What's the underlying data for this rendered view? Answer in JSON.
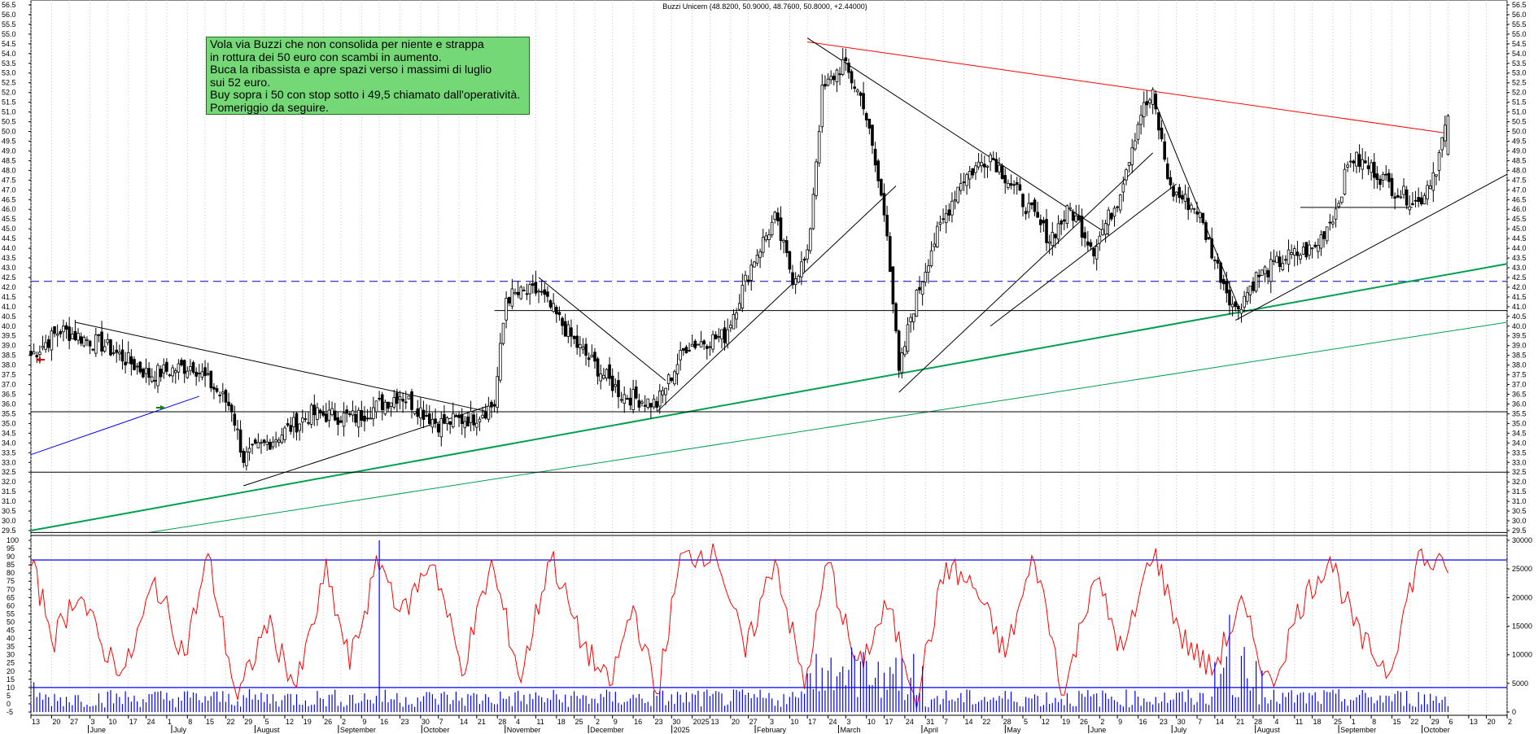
{
  "header": {
    "title": "Buzzi Unicem (48.8200, 50.9000, 48.7600, 50.8000, +2.44000)"
  },
  "note": {
    "lines": [
      "Vola via Buzzi che non consolida per niente e strappa",
      "in rottura dei 50 euro con scambi in aumento.",
      "Buca la ribassista e apre spazi verso i massimi di luglio",
      "sui 52 euro.",
      "Buy sopra i 50 con stop sotto i 49,5 chiamato dall'operatività.",
      "Pomeriggio da seguire."
    ]
  },
  "colors": {
    "candle": "#000000",
    "resistance": "#ff0000",
    "support_blue": "#0000ff",
    "trend_green": "#00a050",
    "oscillator": "#ff0000",
    "volume": "#0000ff",
    "dashed_level": "#0000c0",
    "note_bg": "#75d876"
  },
  "chart_data": [
    {
      "type": "candlestick",
      "title": "Buzzi Unicem (48.8200, 50.9000, 48.7600, 50.8000, +2.44000)",
      "last": {
        "open": 48.82,
        "high": 50.9,
        "low": 48.76,
        "close": 50.8,
        "change": 2.44
      },
      "ylim": [
        29.5,
        56.5
      ],
      "y_ticks": [
        "56.5",
        "56.0",
        "55.5",
        "55.0",
        "54.5",
        "54.0",
        "53.5",
        "53.0",
        "52.5",
        "52.0",
        "51.5",
        "51.0",
        "50.5",
        "50.0",
        "49.5",
        "49.0",
        "48.5",
        "48.0",
        "47.5",
        "47.0",
        "46.5",
        "46.0",
        "45.5",
        "45.0",
        "44.5",
        "44.0",
        "43.5",
        "43.0",
        "42.5",
        "42.0",
        "41.5",
        "41.0",
        "40.5",
        "40.0",
        "39.5",
        "39.0",
        "38.5",
        "38.0",
        "37.5",
        "37.0",
        "36.5",
        "36.0",
        "35.5",
        "35.0",
        "34.5",
        "34.0",
        "33.5",
        "33.0",
        "32.5",
        "32.0",
        "31.5",
        "31.0",
        "30.5",
        "30.0",
        "29.5"
      ],
      "grid": "vertical-dotted",
      "day_ticks": [
        "13",
        "20",
        "27",
        "3",
        "10",
        "17",
        "24",
        "1",
        "8",
        "15",
        "22",
        "29",
        "5",
        "12",
        "19",
        "26",
        "2",
        "9",
        "16",
        "23",
        "30",
        "7",
        "14",
        "21",
        "28",
        "4",
        "11",
        "18",
        "25",
        "2",
        "9",
        "16",
        "23",
        "30",
        "2025",
        "13",
        "20",
        "27",
        "3",
        "10",
        "17",
        "24",
        "3",
        "10",
        "17",
        "24",
        "31",
        "7",
        "14",
        "22",
        "28",
        "5",
        "12",
        "19",
        "26",
        "2",
        "9",
        "16",
        "23",
        "30",
        "7",
        "14",
        "21",
        "28",
        "4",
        "11",
        "18",
        "25",
        "1",
        "8",
        "15",
        "22",
        "29",
        "6",
        "13",
        "20",
        "2"
      ],
      "month_labels": [
        "June",
        "July",
        "August",
        "September",
        "October",
        "November",
        "December",
        "2025",
        "February",
        "March",
        "April",
        "May",
        "June",
        "July",
        "August",
        "September",
        "October"
      ],
      "keypoints": [
        {
          "d": 0,
          "c": 38.5
        },
        {
          "d": 10,
          "c": 39.8
        },
        {
          "d": 25,
          "c": 39.0
        },
        {
          "d": 40,
          "c": 37.5
        },
        {
          "d": 55,
          "c": 38.0
        },
        {
          "d": 68,
          "c": 35.8
        },
        {
          "d": 72,
          "c": 33.2
        },
        {
          "d": 80,
          "c": 34.0
        },
        {
          "d": 95,
          "c": 35.5
        },
        {
          "d": 110,
          "c": 35.3
        },
        {
          "d": 125,
          "c": 36.5
        },
        {
          "d": 138,
          "c": 35.0
        },
        {
          "d": 150,
          "c": 35.3
        },
        {
          "d": 157,
          "c": 36.0
        },
        {
          "d": 161,
          "c": 41.5
        },
        {
          "d": 172,
          "c": 41.8
        },
        {
          "d": 185,
          "c": 39.0
        },
        {
          "d": 200,
          "c": 36.5
        },
        {
          "d": 212,
          "c": 36.0
        },
        {
          "d": 222,
          "c": 39.0
        },
        {
          "d": 235,
          "c": 39.5
        },
        {
          "d": 245,
          "c": 43.5
        },
        {
          "d": 252,
          "c": 45.5
        },
        {
          "d": 258,
          "c": 42.5
        },
        {
          "d": 263,
          "c": 43.5
        },
        {
          "d": 268,
          "c": 52.0
        },
        {
          "d": 275,
          "c": 53.5
        },
        {
          "d": 282,
          "c": 51.5
        },
        {
          "d": 290,
          "c": 45.0
        },
        {
          "d": 294,
          "c": 37.5
        },
        {
          "d": 298,
          "c": 40.5
        },
        {
          "d": 305,
          "c": 44.0
        },
        {
          "d": 315,
          "c": 47.5
        },
        {
          "d": 325,
          "c": 48.8
        },
        {
          "d": 338,
          "c": 46.0
        },
        {
          "d": 345,
          "c": 44.5
        },
        {
          "d": 352,
          "c": 46.0
        },
        {
          "d": 360,
          "c": 44.0
        },
        {
          "d": 368,
          "c": 46.5
        },
        {
          "d": 376,
          "c": 51.0
        },
        {
          "d": 380,
          "c": 51.8
        },
        {
          "d": 386,
          "c": 47.0
        },
        {
          "d": 395,
          "c": 46.0
        },
        {
          "d": 402,
          "c": 43.0
        },
        {
          "d": 408,
          "c": 40.8
        },
        {
          "d": 415,
          "c": 42.5
        },
        {
          "d": 425,
          "c": 43.5
        },
        {
          "d": 435,
          "c": 44.0
        },
        {
          "d": 442,
          "c": 46.0
        },
        {
          "d": 447,
          "c": 48.7
        },
        {
          "d": 455,
          "c": 48.0
        },
        {
          "d": 462,
          "c": 47.0
        },
        {
          "d": 470,
          "c": 46.3
        },
        {
          "d": 476,
          "c": 48.2
        },
        {
          "d": 480,
          "c": 50.8
        }
      ],
      "lines": [
        {
          "name": "red-resistance",
          "color": "#ff0000",
          "points": [
            [
              263,
              54.6
            ],
            [
              480,
              49.9
            ]
          ]
        },
        {
          "name": "blue-support-1",
          "color": "#0000ff",
          "points": [
            [
              0,
              33.4
            ],
            [
              57,
              36.4
            ]
          ]
        },
        {
          "name": "blue-dashed-level",
          "color": "#0000c0",
          "dash": true,
          "points": [
            [
              0,
              42.3
            ],
            [
              500,
              42.3
            ]
          ]
        },
        {
          "name": "green-trend-thick",
          "color": "#00a050",
          "points": [
            [
              0,
              29.5
            ],
            [
              500,
              43.2
            ]
          ]
        },
        {
          "name": "green-trend-thin",
          "color": "#00a050",
          "points": [
            [
              40,
              29.4
            ],
            [
              500,
              40.2
            ]
          ]
        },
        {
          "name": "level-35-5",
          "color": "#000000",
          "points": [
            [
              0,
              35.6
            ],
            [
              500,
              35.6
            ]
          ]
        },
        {
          "name": "level-32-5",
          "color": "#000000",
          "points": [
            [
              0,
              32.5
            ],
            [
              500,
              32.5
            ]
          ]
        },
        {
          "name": "level-29-4",
          "color": "#000000",
          "points": [
            [
              0,
              29.4
            ],
            [
              500,
              29.4
            ]
          ]
        },
        {
          "name": "level-40-8",
          "color": "#000000",
          "points": [
            [
              157,
              40.8
            ],
            [
              500,
              40.8
            ]
          ]
        },
        {
          "name": "descending-1",
          "color": "#000000",
          "points": [
            [
              15,
              40.2
            ],
            [
              155,
              35.6
            ]
          ]
        },
        {
          "name": "ascending-1",
          "color": "#000000",
          "points": [
            [
              72,
              31.8
            ],
            [
              155,
              35.9
            ]
          ]
        },
        {
          "name": "descending-2",
          "color": "#000000",
          "points": [
            [
              172,
              42.5
            ],
            [
              215,
              37.2
            ]
          ]
        },
        {
          "name": "ascending-2",
          "color": "#000000",
          "points": [
            [
              212,
              35.6
            ],
            [
              293,
              47.2
            ]
          ]
        },
        {
          "name": "descending-3",
          "color": "#000000",
          "points": [
            [
              263,
              54.8
            ],
            [
              365,
              44.7
            ]
          ]
        },
        {
          "name": "ascending-3",
          "color": "#000000",
          "points": [
            [
              294,
              36.6
            ],
            [
              380,
              48.9
            ]
          ]
        },
        {
          "name": "descending-4",
          "color": "#000000",
          "points": [
            [
              380,
              51.8
            ],
            [
              409,
              41.0
            ]
          ]
        },
        {
          "name": "ascending-4",
          "color": "#000000",
          "points": [
            [
              408,
              40.3
            ],
            [
              500,
              47.8
            ]
          ]
        },
        {
          "name": "ascending-5",
          "color": "#000000",
          "points": [
            [
              325,
              40.0
            ],
            [
              388,
              47.3
            ]
          ]
        },
        {
          "name": "level-46",
          "color": "#000000",
          "points": [
            [
              430,
              46.1
            ],
            [
              468,
              46.1
            ]
          ]
        }
      ]
    },
    {
      "type": "line",
      "title": "",
      "ylim": [
        -5,
        100
      ],
      "y_ticks": [
        "100",
        "95",
        "90",
        "85",
        "80",
        "75",
        "70",
        "65",
        "60",
        "55",
        "50",
        "45",
        "40",
        "35",
        "30",
        "25",
        "20",
        "15",
        "10",
        "5",
        "0",
        "-5"
      ],
      "levels": [
        88,
        10
      ],
      "series": [
        {
          "keypoints": [
            [
              0,
              85
            ],
            [
              8,
              40
            ],
            [
              16,
              70
            ],
            [
              24,
              35
            ],
            [
              32,
              20
            ],
            [
              42,
              75
            ],
            [
              52,
              30
            ],
            [
              60,
              90
            ],
            [
              70,
              2
            ],
            [
              80,
              50
            ],
            [
              90,
              10
            ],
            [
              100,
              80
            ],
            [
              108,
              25
            ],
            [
              118,
              88
            ],
            [
              126,
              55
            ],
            [
              136,
              90
            ],
            [
              146,
              20
            ],
            [
              156,
              85
            ],
            [
              166,
              15
            ],
            [
              176,
              92
            ],
            [
              186,
              40
            ],
            [
              196,
              10
            ],
            [
              204,
              60
            ],
            [
              212,
              5
            ],
            [
              220,
              88
            ],
            [
              232,
              95
            ],
            [
              242,
              30
            ],
            [
              252,
              90
            ],
            [
              262,
              10
            ],
            [
              270,
              88
            ],
            [
              280,
              20
            ],
            [
              290,
              60
            ],
            [
              300,
              5
            ],
            [
              310,
              85
            ],
            [
              320,
              70
            ],
            [
              330,
              30
            ],
            [
              340,
              90
            ],
            [
              350,
              5
            ],
            [
              360,
              80
            ],
            [
              370,
              30
            ],
            [
              380,
              95
            ],
            [
              390,
              40
            ],
            [
              400,
              20
            ],
            [
              410,
              60
            ],
            [
              420,
              10
            ],
            [
              430,
              60
            ],
            [
              440,
              90
            ],
            [
              450,
              40
            ],
            [
              460,
              20
            ],
            [
              470,
              90
            ],
            [
              476,
              85
            ],
            [
              480,
              80
            ]
          ]
        }
      ]
    },
    {
      "type": "bar",
      "title": "",
      "ylim": [
        0,
        30000
      ],
      "y_ticks": [
        "30000",
        "25000",
        "20000",
        "15000",
        "10000",
        "5000",
        "0"
      ],
      "series": [
        {
          "name": "volume",
          "spikes": [
            [
              1,
              5200
            ],
            [
              118,
              30000
            ],
            [
              298,
              6000
            ],
            [
              302,
              8000
            ],
            [
              406,
              17000
            ]
          ]
        }
      ]
    }
  ]
}
